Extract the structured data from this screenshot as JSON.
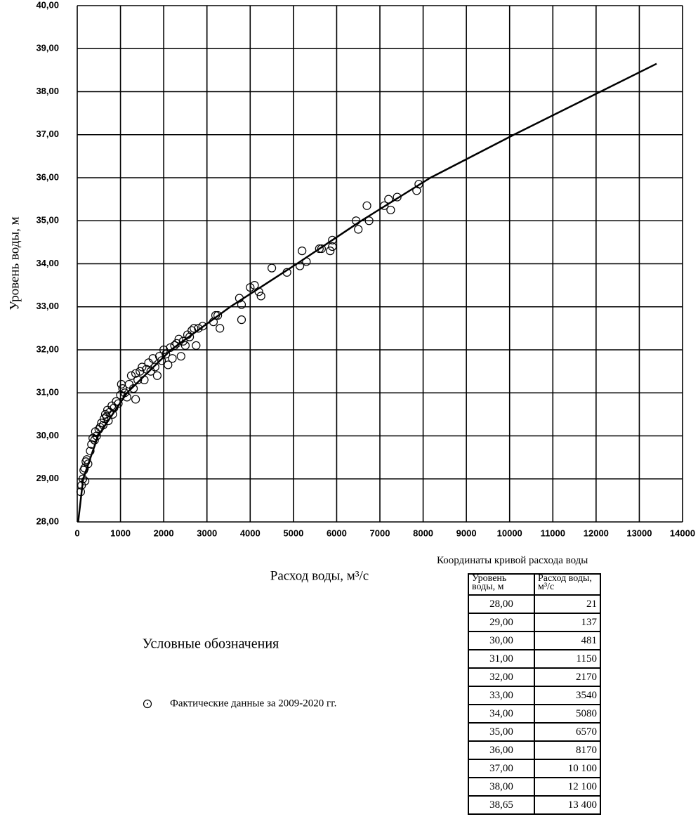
{
  "chart_data": {
    "type": "scatter",
    "y_label": "Уровень воды, м",
    "x_label": "Расход воды, м³/с",
    "legend_title": "Условные обозначения",
    "xlim": [
      0,
      14000
    ],
    "ylim": [
      28,
      40
    ],
    "xticks": [
      0,
      1000,
      2000,
      3000,
      4000,
      5000,
      6000,
      7000,
      8000,
      9000,
      10000,
      11000,
      12000,
      13000,
      14000
    ],
    "yticks": [
      {
        "value": 28,
        "label": "28,00"
      },
      {
        "value": 29,
        "label": "29,00"
      },
      {
        "value": 30,
        "label": "30,00"
      },
      {
        "value": 31,
        "label": "31,00"
      },
      {
        "value": 32,
        "label": "32,00"
      },
      {
        "value": 33,
        "label": "33,00"
      },
      {
        "value": 34,
        "label": "34,00"
      },
      {
        "value": 35,
        "label": "35,00"
      },
      {
        "value": 36,
        "label": "36,00"
      },
      {
        "value": 37,
        "label": "37,00"
      },
      {
        "value": 38,
        "label": "38,00"
      },
      {
        "value": 39,
        "label": "39,00"
      },
      {
        "value": 40,
        "label": "40,00"
      }
    ],
    "grid": true,
    "series": [
      {
        "type": "scatter",
        "name": "Фактические данные за 2009-2020 гг.",
        "color": "#000000",
        "x": [
          80,
          100,
          130,
          150,
          170,
          200,
          220,
          180,
          250,
          300,
          330,
          360,
          400,
          420,
          450,
          500,
          530,
          560,
          600,
          620,
          650,
          680,
          700,
          720,
          750,
          800,
          820,
          850,
          900,
          950,
          1000,
          1050,
          1020,
          1100,
          1150,
          1200,
          1250,
          1300,
          1350,
          1350,
          1400,
          1450,
          1500,
          1550,
          1600,
          1650,
          1700,
          1750,
          1800,
          1850,
          1900,
          1950,
          2000,
          2050,
          2100,
          2150,
          2200,
          2250,
          2300,
          2350,
          2400,
          2450,
          2500,
          2550,
          2600,
          2650,
          2700,
          2750,
          2800,
          2900,
          3150,
          3200,
          3250,
          3300,
          3750,
          3800,
          3800,
          4000,
          4100,
          4200,
          4250,
          4500,
          4850,
          5150,
          5200,
          5300,
          5600,
          5650,
          5850,
          5900,
          5900,
          6450,
          6500,
          6700,
          6750,
          7100,
          7200,
          7250,
          7400,
          7850,
          7900
        ],
        "y": [
          28.7,
          28.85,
          29.0,
          29.2,
          29.25,
          29.4,
          29.45,
          28.95,
          29.35,
          29.65,
          29.8,
          29.95,
          29.9,
          30.1,
          30.0,
          30.15,
          30.2,
          30.3,
          30.25,
          30.4,
          30.5,
          30.45,
          30.6,
          30.35,
          30.55,
          30.7,
          30.5,
          30.65,
          30.8,
          30.75,
          30.95,
          31.1,
          31.2,
          31.0,
          30.9,
          31.2,
          31.4,
          31.1,
          31.45,
          30.85,
          31.3,
          31.5,
          31.6,
          31.3,
          31.55,
          31.7,
          31.5,
          31.8,
          31.6,
          31.4,
          31.85,
          31.75,
          32.0,
          31.9,
          31.65,
          32.05,
          31.8,
          32.1,
          32.15,
          32.25,
          31.85,
          32.2,
          32.1,
          32.35,
          32.3,
          32.45,
          32.5,
          32.1,
          32.5,
          32.55,
          32.65,
          32.8,
          32.8,
          32.5,
          33.2,
          33.05,
          32.7,
          33.45,
          33.5,
          33.35,
          33.25,
          33.9,
          33.8,
          33.95,
          34.3,
          34.05,
          34.35,
          34.35,
          34.3,
          34.4,
          34.55,
          35.0,
          34.8,
          35.35,
          35.0,
          35.35,
          35.5,
          35.25,
          35.55,
          35.7,
          35.85
        ]
      },
      {
        "type": "line",
        "color": "#000000",
        "x": [
          21,
          137,
          481,
          1150,
          2170,
          3540,
          5080,
          6570,
          8170,
          10100,
          12100,
          13400
        ],
        "y": [
          28,
          29,
          30,
          31,
          32,
          33,
          34,
          35,
          36,
          37,
          38,
          38.65
        ]
      }
    ]
  },
  "table": {
    "title": "Координаты кривой расхода воды",
    "header": [
      "Уровень воды, м",
      "Расход воды, м³/с"
    ],
    "rows": [
      [
        "28,00",
        "21"
      ],
      [
        "29,00",
        "137"
      ],
      [
        "30,00",
        "481"
      ],
      [
        "31,00",
        "1150"
      ],
      [
        "32,00",
        "2170"
      ],
      [
        "33,00",
        "3540"
      ],
      [
        "34,00",
        "5080"
      ],
      [
        "35,00",
        "6570"
      ],
      [
        "36,00",
        "8170"
      ],
      [
        "37,00",
        "10 100"
      ],
      [
        "38,00",
        "12 100"
      ],
      [
        "38,65",
        "13 400"
      ]
    ]
  }
}
